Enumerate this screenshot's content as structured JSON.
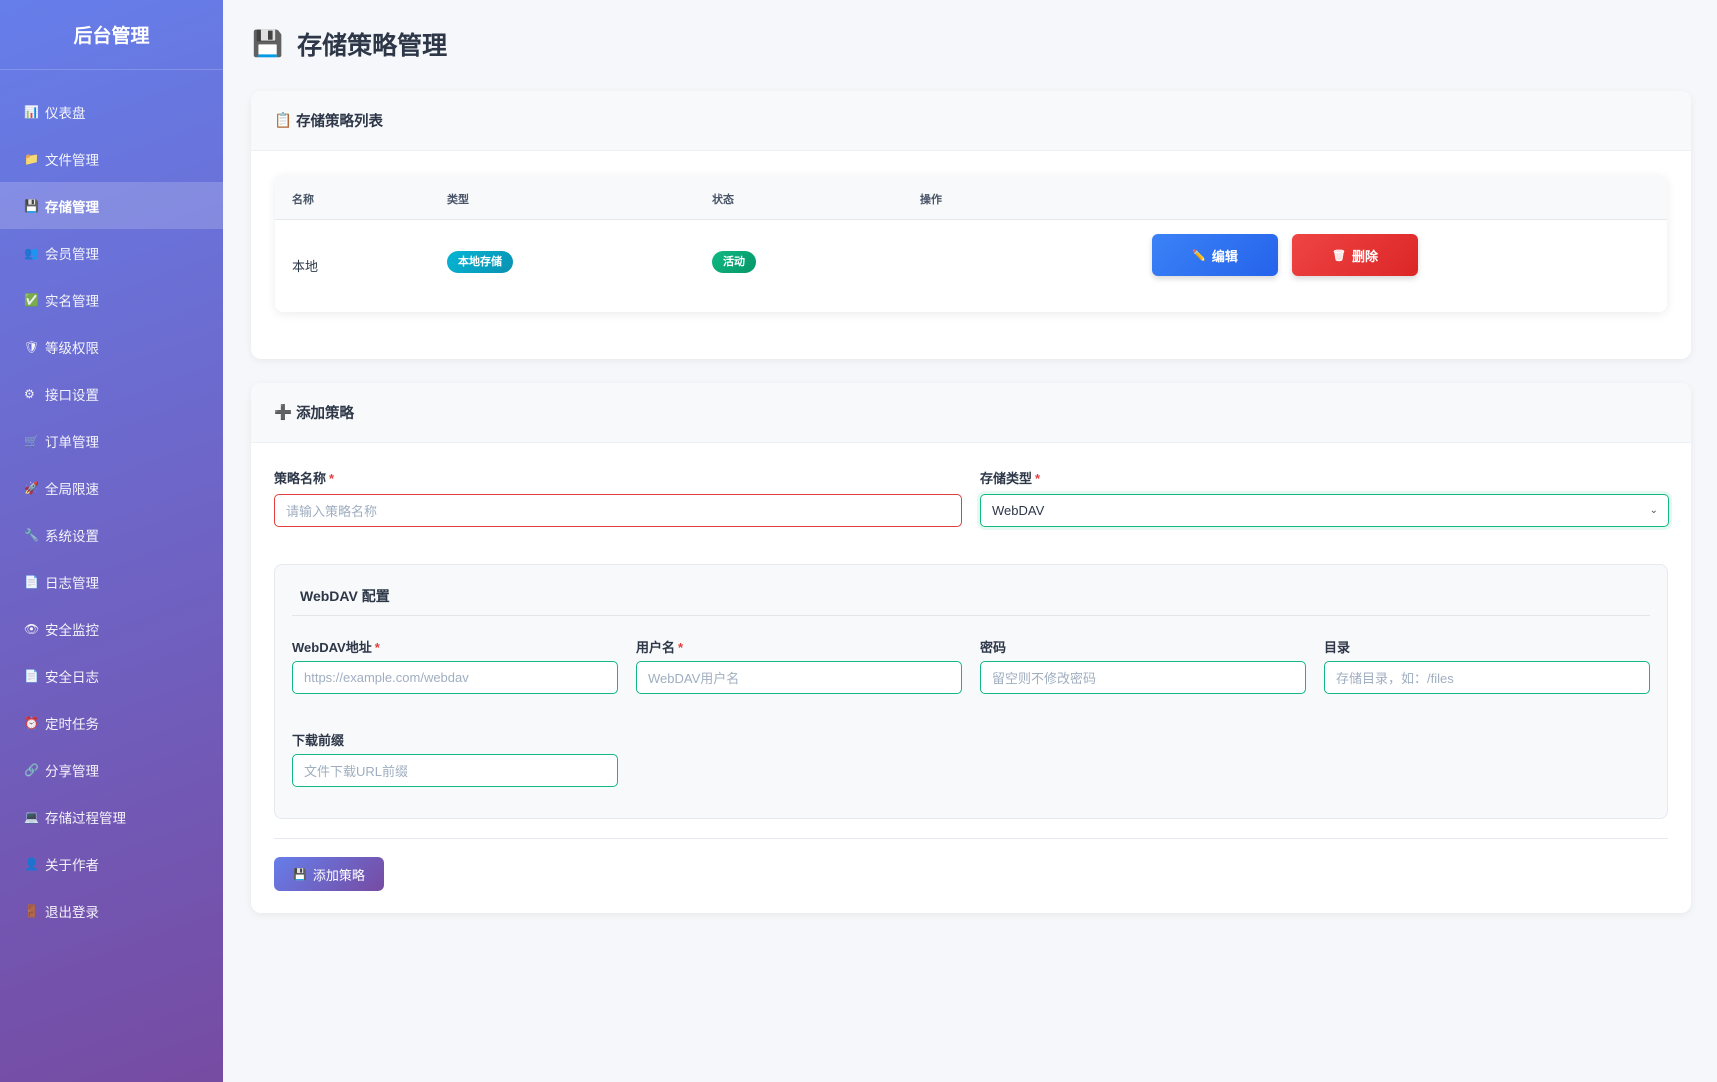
{
  "sidebar": {
    "title": "后台管理",
    "items": [
      {
        "icon": "📊",
        "label": "仪表盘"
      },
      {
        "icon": "📁",
        "label": "文件管理"
      },
      {
        "icon": "💾",
        "label": "存储管理",
        "active": true
      },
      {
        "icon": "👥",
        "label": "会员管理"
      },
      {
        "icon": "✅",
        "label": "实名管理"
      },
      {
        "icon": "🛡",
        "label": "等级权限"
      },
      {
        "icon": "⚙",
        "label": "接口设置"
      },
      {
        "icon": "🛒",
        "label": "订单管理"
      },
      {
        "icon": "🚀",
        "label": "全局限速"
      },
      {
        "icon": "🔧",
        "label": "系统设置"
      },
      {
        "icon": "📄",
        "label": "日志管理"
      },
      {
        "icon": "👁",
        "label": "安全监控"
      },
      {
        "icon": "📄",
        "label": "安全日志"
      },
      {
        "icon": "⏰",
        "label": "定时任务"
      },
      {
        "icon": "🔗",
        "label": "分享管理"
      },
      {
        "icon": "💻",
        "label": "存储过程管理"
      },
      {
        "icon": "👤",
        "label": "关于作者"
      },
      {
        "icon": "🚪",
        "label": "退出登录"
      }
    ]
  },
  "page": {
    "icon": "💾",
    "title": "存储策略管理"
  },
  "list": {
    "icon": "📋",
    "title": "存储策略列表",
    "headers": [
      "名称",
      "类型",
      "状态",
      "操作"
    ],
    "rows": [
      {
        "name": "本地",
        "type": "本地存储",
        "status": "活动",
        "edit": "编辑",
        "delete": "删除",
        "edit_icon": "✏️",
        "delete_icon": "🗑"
      }
    ]
  },
  "form": {
    "icon": "➕",
    "title": "添加策略",
    "name_label": "策略名称",
    "name_placeholder": "请输入策略名称",
    "type_label": "存储类型",
    "type_value": "WebDAV",
    "config_title": "WebDAV 配置",
    "url_label": "WebDAV地址",
    "url_placeholder": "https://example.com/webdav",
    "user_label": "用户名",
    "user_placeholder": "WebDAV用户名",
    "pass_label": "密码",
    "pass_placeholder": "留空则不修改密码",
    "dir_label": "目录",
    "dir_placeholder": "存储目录，如：/files",
    "prefix_label": "下载前缀",
    "prefix_placeholder": "文件下载URL前缀",
    "required_mark": "*",
    "submit_icon": "💾",
    "submit": "添加策略"
  },
  "colors": {
    "accent": "#667eea",
    "active_badge": "#10b981",
    "type_badge": "#06b6d4",
    "edit": "#3b82f6",
    "delete": "#ef4444"
  }
}
